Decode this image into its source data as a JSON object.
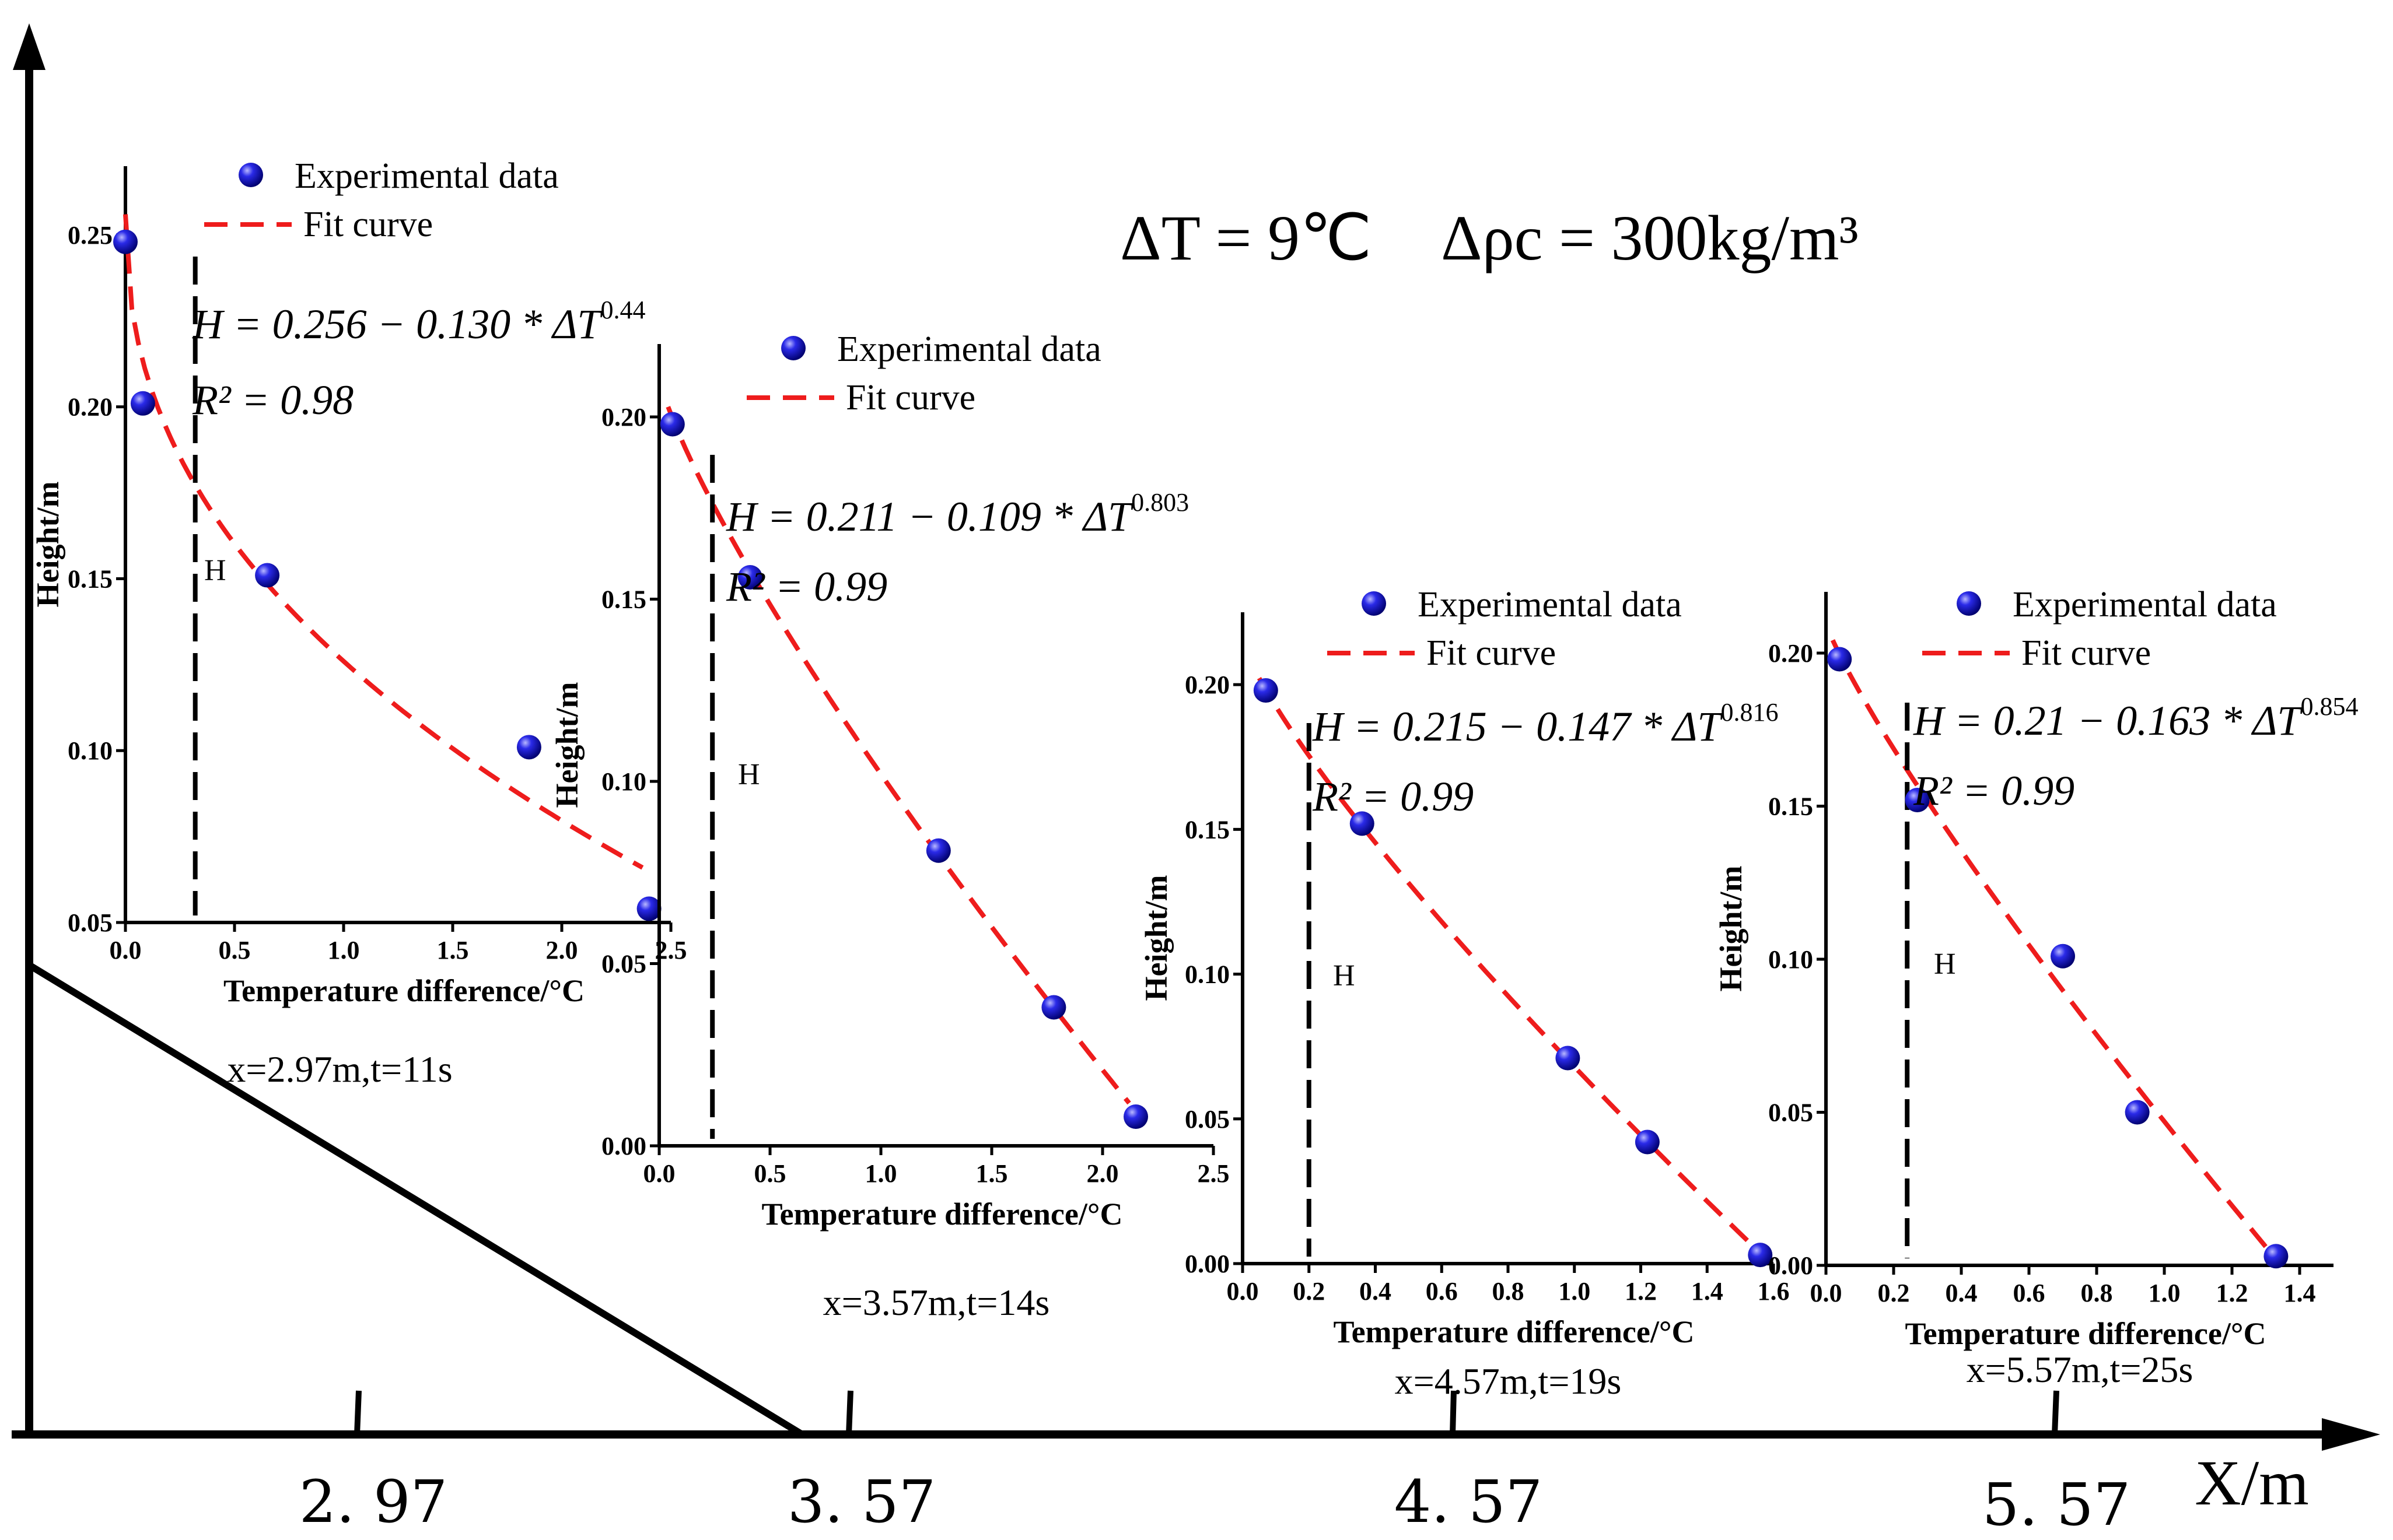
{
  "title": {
    "dT_text": "ΔT = 9℃",
    "rho_text": "Δρc = 300kg/m³"
  },
  "main_axis": {
    "x_label": "X/m",
    "ticks": [
      "2. 97",
      "3. 57",
      "4. 57",
      "5. 57"
    ]
  },
  "colors": {
    "points": "#1a1ad6",
    "fit": "#ee1c1c",
    "axis": "#000000"
  },
  "chart_data": [
    {
      "type": "scatter",
      "title": "x=2.97m,t=11s",
      "xlabel": "Temperature difference/°C",
      "ylabel": "Height/m",
      "xlim": [
        0,
        2.5
      ],
      "ylim": [
        0.05,
        0.27
      ],
      "xticks": [
        "0.0",
        "0.5",
        "1.0",
        "1.5",
        "2.0",
        "2.5"
      ],
      "yticks": [
        "0.05",
        "0.10",
        "0.15",
        "0.20",
        "0.25"
      ],
      "x": [
        0.0,
        0.08,
        0.65,
        1.85,
        2.4
      ],
      "y": [
        0.248,
        0.201,
        0.151,
        0.101,
        0.054
      ],
      "fit": {
        "a": 0.256,
        "b": 0.13,
        "n": 0.44
      },
      "equation": "H = 0.256 − 0.130 * ΔT^0.44",
      "r2": "R² = 0.98",
      "h_line_x": 0.32,
      "h_label": "H",
      "legend": [
        "Experimental data",
        "Fit curve"
      ]
    },
    {
      "type": "scatter",
      "title": "x=3.57m,t=14s",
      "xlabel": "Temperature difference/°C",
      "ylabel": "Height/m",
      "xlim": [
        0,
        2.5
      ],
      "ylim": [
        0.0,
        0.22
      ],
      "xticks": [
        "0.0",
        "0.5",
        "1.0",
        "1.5",
        "2.0",
        "2.5"
      ],
      "yticks": [
        "0.00",
        "0.05",
        "0.10",
        "0.15",
        "0.20"
      ],
      "x": [
        0.06,
        0.41,
        1.26,
        1.78,
        2.15
      ],
      "y": [
        0.198,
        0.156,
        0.081,
        0.038,
        0.008
      ],
      "fit": {
        "a": 0.211,
        "b": 0.109,
        "n": 0.803
      },
      "equation": "H = 0.211 − 0.109 * ΔT^0.803",
      "r2": "R² = 0.99",
      "h_line_x": 0.24,
      "h_label": "H",
      "legend": [
        "Experimental data",
        "Fit curve"
      ]
    },
    {
      "type": "scatter",
      "title": "x=4.57m,t=19s",
      "xlabel": "Temperature difference/°C",
      "ylabel": "Height/m",
      "xlim": [
        0,
        1.6
      ],
      "ylim": [
        0.0,
        0.225
      ],
      "xticks": [
        "0.0",
        "0.2",
        "0.4",
        "0.6",
        "0.8",
        "1.0",
        "1.2",
        "1.4",
        "1.6"
      ],
      "yticks": [
        "0.00",
        "0.05",
        "0.10",
        "0.15",
        "0.20"
      ],
      "x": [
        0.07,
        0.36,
        0.98,
        1.22,
        1.56
      ],
      "y": [
        0.198,
        0.152,
        0.071,
        0.042,
        0.003
      ],
      "fit": {
        "a": 0.215,
        "b": 0.147,
        "n": 0.816
      },
      "equation": "H = 0.215 − 0.147 * ΔT^0.816",
      "r2": "R² = 0.99",
      "h_line_x": 0.2,
      "h_label": "H",
      "legend": [
        "Experimental data",
        "Fit curve"
      ]
    },
    {
      "type": "scatter",
      "title": "x=5.57m,t=25s",
      "xlabel": "Temperature difference/°C",
      "ylabel": "Height/m",
      "xlim": [
        0,
        1.5
      ],
      "ylim": [
        0.0,
        0.22
      ],
      "xticks": [
        "0.0",
        "0.2",
        "0.4",
        "0.6",
        "0.8",
        "1.0",
        "1.2",
        "1.4"
      ],
      "yticks": [
        "0.00",
        "0.05",
        "0.10",
        "0.15",
        "0.20"
      ],
      "x": [
        0.04,
        0.27,
        0.7,
        0.92,
        1.33
      ],
      "y": [
        0.198,
        0.152,
        0.101,
        0.05,
        0.003
      ],
      "fit": {
        "a": 0.21,
        "b": 0.163,
        "n": 0.854
      },
      "equation": "H = 0.21 − 0.163 * ΔT^0.854",
      "r2": "R² = 0.99",
      "h_line_x": 0.24,
      "h_label": "H",
      "legend": [
        "Experimental data",
        "Fit curve"
      ]
    }
  ]
}
